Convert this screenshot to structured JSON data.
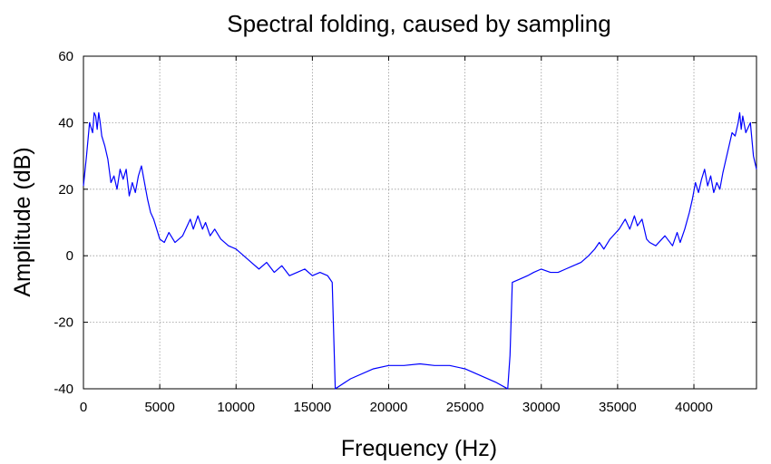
{
  "chart_data": {
    "type": "line",
    "title": "Spectral folding, caused by sampling",
    "xlabel": "Frequency (Hz)",
    "ylabel": "Amplitude (dB)",
    "xlim": [
      0,
      44100
    ],
    "ylim": [
      -40,
      60
    ],
    "xticks": [
      0,
      5000,
      10000,
      15000,
      20000,
      25000,
      30000,
      35000,
      40000
    ],
    "yticks": [
      -40,
      -20,
      0,
      20,
      40,
      60
    ],
    "grid": true,
    "line_color": "#0000ff",
    "series": [
      {
        "x": [
          0,
          200,
          400,
          600,
          700,
          800,
          900,
          1000,
          1100,
          1200,
          1400,
          1600,
          1800,
          2000,
          2200,
          2400,
          2600,
          2800,
          3000,
          3200,
          3400,
          3600,
          3800,
          4000,
          4200,
          4400,
          4600,
          5000,
          5300,
          5600,
          6000,
          6500,
          7000,
          7200,
          7500,
          7800,
          8000,
          8300,
          8600,
          9000,
          9500,
          10000,
          10500,
          11000,
          11500,
          12000,
          12500,
          13000,
          13500,
          14000,
          14500,
          15000,
          15500,
          16000,
          16150,
          16300,
          16500,
          17500,
          19000,
          20000,
          21000,
          22050,
          23000,
          24000,
          25000,
          26000,
          27000,
          27600,
          27800,
          27950,
          28100,
          28600,
          29100,
          29500,
          30000,
          30600,
          31100,
          31600,
          32100,
          32600,
          33100,
          33500,
          33800,
          34100,
          34500,
          35100,
          35500,
          35800,
          36100,
          36300,
          36600,
          36900,
          37100,
          37500,
          38100,
          38600,
          38900,
          39100,
          39400,
          39700,
          39900,
          40100,
          40300,
          40500,
          40700,
          40900,
          41100,
          41300,
          41500,
          41700,
          41900,
          42100,
          42300,
          42500,
          42700,
          42900,
          43000,
          43100,
          43200,
          43400,
          43700,
          43900,
          44100
        ],
        "y": [
          21,
          30,
          40,
          37,
          43,
          42,
          38,
          43,
          40,
          36,
          33,
          29,
          22,
          24,
          20,
          26,
          23,
          26,
          18,
          22,
          19,
          24,
          27,
          22,
          17,
          13,
          11,
          5,
          4,
          7,
          4,
          6,
          11,
          8,
          12,
          8,
          10,
          6,
          8,
          5,
          3,
          2,
          0,
          -2,
          -4,
          -2,
          -5,
          -3,
          -6,
          -5,
          -4,
          -6,
          -5,
          -6,
          -7,
          -8,
          -40,
          -37,
          -34,
          -33,
          -33,
          -32.5,
          -33,
          -33,
          -34,
          -36,
          -38,
          -39.5,
          -40,
          -30,
          -8,
          -7,
          -6,
          -5,
          -4,
          -5,
          -5,
          -4,
          -3,
          -2,
          0,
          2,
          4,
          2,
          5,
          8,
          11,
          8,
          12,
          9,
          11,
          5,
          4,
          3,
          6,
          3,
          7,
          4,
          8,
          13,
          17,
          22,
          19,
          23,
          26,
          21,
          24,
          19,
          22,
          20,
          25,
          29,
          33,
          37,
          36,
          40,
          43,
          38,
          42,
          37,
          40,
          30,
          26
        ]
      }
    ]
  }
}
